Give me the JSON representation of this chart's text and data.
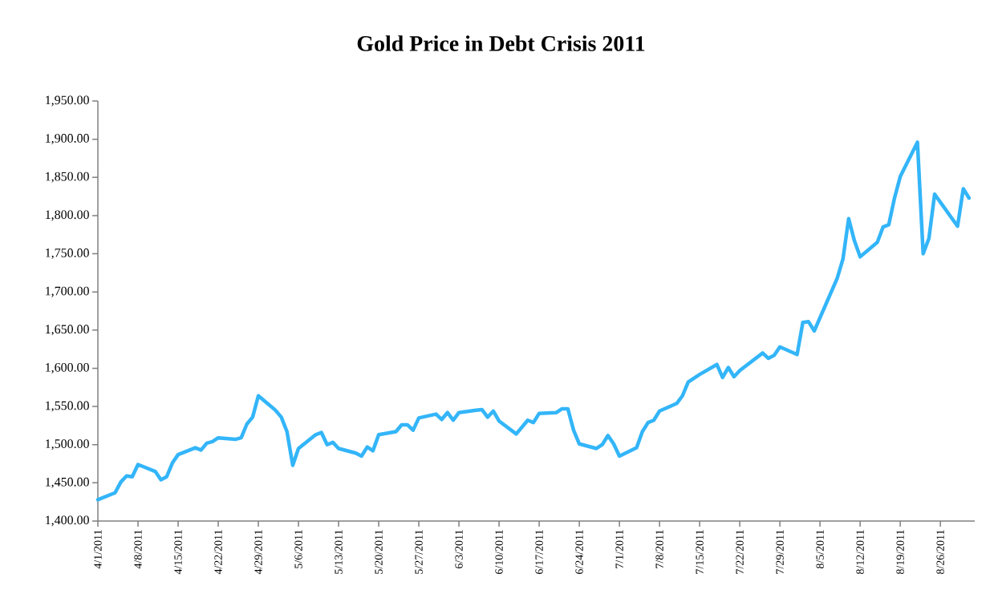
{
  "chart_data": {
    "type": "line",
    "title": "Gold Price in Debt Crisis 2011",
    "x": [
      "2011-04-01",
      "2011-04-04",
      "2011-04-05",
      "2011-04-06",
      "2011-04-07",
      "2011-04-08",
      "2011-04-11",
      "2011-04-12",
      "2011-04-13",
      "2011-04-14",
      "2011-04-15",
      "2011-04-18",
      "2011-04-19",
      "2011-04-20",
      "2011-04-21",
      "2011-04-22",
      "2011-04-25",
      "2011-04-26",
      "2011-04-27",
      "2011-04-28",
      "2011-04-29",
      "2011-05-02",
      "2011-05-03",
      "2011-05-04",
      "2011-05-05",
      "2011-05-06",
      "2011-05-09",
      "2011-05-10",
      "2011-05-11",
      "2011-05-12",
      "2011-05-13",
      "2011-05-16",
      "2011-05-17",
      "2011-05-18",
      "2011-05-19",
      "2011-05-20",
      "2011-05-23",
      "2011-05-24",
      "2011-05-25",
      "2011-05-26",
      "2011-05-27",
      "2011-05-30",
      "2011-05-31",
      "2011-06-01",
      "2011-06-02",
      "2011-06-03",
      "2011-06-06",
      "2011-06-07",
      "2011-06-08",
      "2011-06-09",
      "2011-06-10",
      "2011-06-13",
      "2011-06-15",
      "2011-06-16",
      "2011-06-17",
      "2011-06-20",
      "2011-06-21",
      "2011-06-22",
      "2011-06-23",
      "2011-06-24",
      "2011-06-27",
      "2011-06-28",
      "2011-06-29",
      "2011-06-30",
      "2011-07-01",
      "2011-07-04",
      "2011-07-05",
      "2011-07-06",
      "2011-07-07",
      "2011-07-08",
      "2011-07-11",
      "2011-07-12",
      "2011-07-13",
      "2011-07-15",
      "2011-07-18",
      "2011-07-19",
      "2011-07-20",
      "2011-07-21",
      "2011-07-22",
      "2011-07-26",
      "2011-07-27",
      "2011-07-28",
      "2011-07-29",
      "2011-08-01",
      "2011-08-02",
      "2011-08-03",
      "2011-08-04",
      "2011-08-08",
      "2011-08-09",
      "2011-08-10",
      "2011-08-11",
      "2011-08-12",
      "2011-08-15",
      "2011-08-16",
      "2011-08-17",
      "2011-08-18",
      "2011-08-19",
      "2011-08-22",
      "2011-08-23",
      "2011-08-24",
      "2011-08-25",
      "2011-08-29",
      "2011-08-30",
      "2011-08-31"
    ],
    "series": [
      {
        "color": "#33b5f9",
        "values": [
          1428,
          1437,
          1451,
          1459,
          1458,
          1474,
          1465,
          1454,
          1458,
          1476,
          1487,
          1496,
          1493,
          1502,
          1504,
          1509,
          1507,
          1509,
          1527,
          1536,
          1564,
          1545,
          1536,
          1517,
          1473,
          1495,
          1513,
          1516,
          1500,
          1503,
          1495,
          1489,
          1485,
          1497,
          1492,
          1513,
          1517,
          1526,
          1526,
          1519,
          1535,
          1540,
          1533,
          1542,
          1532,
          1542,
          1545,
          1546,
          1536,
          1544,
          1531,
          1514,
          1532,
          1529,
          1541,
          1542,
          1547,
          1547,
          1519,
          1501,
          1495,
          1500,
          1512,
          1501,
          1485,
          1496,
          1517,
          1529,
          1532,
          1544,
          1554,
          1564,
          1582,
          1592,
          1605,
          1588,
          1601,
          1589,
          1597,
          1620,
          1613,
          1617,
          1628,
          1618,
          1660,
          1661,
          1649,
          1718,
          1743,
          1796,
          1767,
          1746,
          1765,
          1785,
          1788,
          1823,
          1851,
          1896,
          1750,
          1770,
          1828,
          1786,
          1835,
          1823
        ]
      }
    ],
    "xlim": [
      "2011-04-01",
      "2011-09-01"
    ],
    "xticks": [
      {
        "value": "2011-04-01",
        "label": "4/1/2011"
      },
      {
        "value": "2011-04-08",
        "label": "4/8/2011"
      },
      {
        "value": "2011-04-15",
        "label": "4/15/2011"
      },
      {
        "value": "2011-04-22",
        "label": "4/22/2011"
      },
      {
        "value": "2011-04-29",
        "label": "4/29/2011"
      },
      {
        "value": "2011-05-06",
        "label": "5/6/2011"
      },
      {
        "value": "2011-05-13",
        "label": "5/13/2011"
      },
      {
        "value": "2011-05-20",
        "label": "5/20/2011"
      },
      {
        "value": "2011-05-27",
        "label": "5/27/2011"
      },
      {
        "value": "2011-06-03",
        "label": "6/3/2011"
      },
      {
        "value": "2011-06-10",
        "label": "6/10/2011"
      },
      {
        "value": "2011-06-17",
        "label": "6/17/2011"
      },
      {
        "value": "2011-06-24",
        "label": "6/24/2011"
      },
      {
        "value": "2011-07-01",
        "label": "7/1/2011"
      },
      {
        "value": "2011-07-08",
        "label": "7/8/2011"
      },
      {
        "value": "2011-07-15",
        "label": "7/15/2011"
      },
      {
        "value": "2011-07-22",
        "label": "7/22/2011"
      },
      {
        "value": "2011-07-29",
        "label": "7/29/2011"
      },
      {
        "value": "2011-08-05",
        "label": "8/5/2011"
      },
      {
        "value": "2011-08-12",
        "label": "8/12/2011"
      },
      {
        "value": "2011-08-19",
        "label": "8/19/2011"
      },
      {
        "value": "2011-08-26",
        "label": "8/26/2011"
      }
    ],
    "ylim": [
      1400,
      1950
    ],
    "yticks": [
      {
        "value": 1400,
        "label": "1,400.00"
      },
      {
        "value": 1450,
        "label": "1,450.00"
      },
      {
        "value": 1500,
        "label": "1,500.00"
      },
      {
        "value": 1550,
        "label": "1,550.00"
      },
      {
        "value": 1600,
        "label": "1,600.00"
      },
      {
        "value": 1650,
        "label": "1,650.00"
      },
      {
        "value": 1700,
        "label": "1,700.00"
      },
      {
        "value": 1750,
        "label": "1,750.00"
      },
      {
        "value": 1800,
        "label": "1,800.00"
      },
      {
        "value": 1850,
        "label": "1,850.00"
      },
      {
        "value": 1900,
        "label": "1,900.00"
      },
      {
        "value": 1950,
        "label": "1,950.00"
      }
    ],
    "marker": "none",
    "line_style": "solid"
  }
}
